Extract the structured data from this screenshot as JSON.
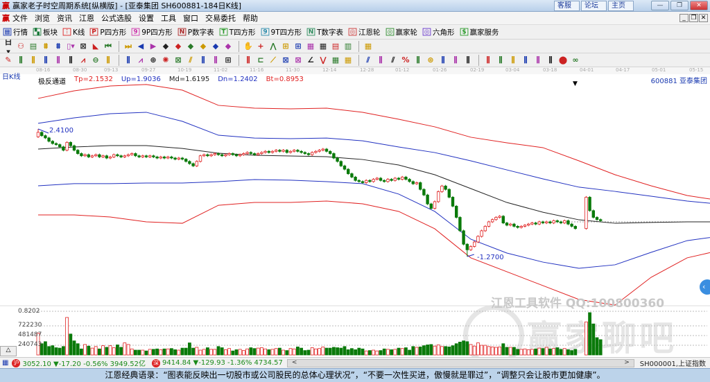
{
  "window": {
    "title": "赢家老子时空周期系统[纵横版] - [亚泰集团  SH600881-184日K线]",
    "logo": "赢",
    "links": [
      "客服",
      "论坛",
      "主页"
    ],
    "controls": [
      "—",
      "❐",
      "✕"
    ]
  },
  "menu": {
    "items": [
      "文件",
      "浏览",
      "资讯",
      "江恩",
      "公式选股",
      "设置",
      "工具",
      "窗口",
      "交易委托",
      "帮助"
    ],
    "mdi": [
      "_",
      "❐",
      "✕"
    ]
  },
  "toolbar1": [
    {
      "label": "行情",
      "icon": "▦",
      "color": "#1a3ab0"
    },
    {
      "label": "板块",
      "icon": "▚",
      "color": "#1a7a3a"
    },
    {
      "label": "K线",
      "icon": "⫶",
      "color": "#d22"
    },
    {
      "label": "P四方形",
      "icon": "P",
      "color": "#c22"
    },
    {
      "label": "9P四方形",
      "icon": "9",
      "color": "#c3a"
    },
    {
      "label": "P数字表",
      "icon": "N",
      "color": "#a22"
    },
    {
      "label": "T四方形",
      "icon": "T",
      "color": "#2a9a2a"
    },
    {
      "label": "9T四方形",
      "icon": "9",
      "color": "#2a8aaa"
    },
    {
      "label": "T数字表",
      "icon": "N",
      "color": "#2a8a5a"
    },
    {
      "label": "江恩轮",
      "icon": "◎",
      "color": "#c33"
    },
    {
      "label": "赢家轮",
      "icon": "◎",
      "color": "#2a8a2a"
    },
    {
      "label": "六角形",
      "icon": "◎",
      "color": "#63c"
    },
    {
      "label": "赢家服务",
      "icon": "$",
      "color": "#2a9a2a"
    }
  ],
  "toolbar2": [
    "日▾",
    "⚇",
    "▤",
    "⩩",
    "⩩",
    "▯▾",
    "⊠",
    "◣",
    "⏮",
    "⏭",
    "◀",
    "▶",
    "◆",
    "◆",
    "◆",
    "◆",
    "◆",
    "◆",
    "✋",
    "+",
    "⋀",
    "⊞",
    "⊞",
    "▦",
    "▦",
    "▤",
    "▥",
    "▦"
  ],
  "toolbar3": [
    "✎",
    "⫼",
    "⫼",
    "⫼",
    "⫼",
    "⫼",
    "⩘",
    "⊖",
    "⫼",
    "⫼",
    "⩘",
    "⊕",
    "✺",
    "⊠",
    "⫽",
    "⫼",
    "⫼",
    "⊞",
    "⫼",
    "⊏",
    "⟋",
    "⊠",
    "⊠",
    "∠",
    "⋁",
    "▦",
    "▦",
    "⫽",
    "⫼",
    "⫽",
    "%",
    "⫼",
    "⊛",
    "⫼",
    "⫼",
    "⫼",
    "⫼",
    "⫼",
    "⫼",
    "⫼",
    "⫼",
    "⫼",
    "⬤",
    "∞"
  ],
  "chart": {
    "period_label": "日K线",
    "stock": "600881  亚泰集团",
    "indicator": {
      "name": "极反通道",
      "tp": "Tp=2.1532",
      "up": "Up=1.9036",
      "md": "Md=1.6195",
      "dn": "Dn=1.2402",
      "bt": "Bt=0.8953"
    },
    "colors": {
      "tp": "#e02020",
      "up": "#2030c0",
      "md": "#222222",
      "dn": "#2030c0",
      "bt": "#e02020",
      "up_candle": "#e02020",
      "down_candle": "#0a7a0a"
    },
    "dates": [
      "08-16",
      "08-30",
      "09-13",
      "09-27",
      "10-19",
      "11-02",
      "11-16",
      "11-30",
      "12-14",
      "12-28",
      "01-12",
      "01-26",
      "02-19",
      "03-04",
      "03-18",
      "04-01",
      "04-17",
      "05-01",
      "05-15"
    ],
    "high_label": "2.4100",
    "low_label": "1.2700",
    "volume_labels": [
      "0.8202",
      "722230",
      "481487",
      "240743"
    ],
    "watermark": "江恩工具软件  QQ:100800360",
    "watermark_big": "赢家聊吧"
  },
  "chart_data": {
    "type": "candlestick",
    "first_open": 2.34,
    "closes": [
      2.38,
      2.35,
      2.33,
      2.3,
      2.28,
      2.27,
      2.25,
      2.22,
      2.29,
      2.26,
      2.22,
      2.19,
      2.17,
      2.18,
      2.16,
      2.17,
      2.18,
      2.16,
      2.17,
      2.15,
      2.16,
      2.18,
      2.17,
      2.16,
      2.17,
      2.18,
      2.19,
      2.17,
      2.16,
      2.17,
      2.16,
      2.17,
      2.16,
      2.15,
      2.16,
      2.15,
      2.16,
      2.15,
      2.14,
      2.15,
      2.14,
      2.12,
      2.1,
      2.08,
      2.12,
      2.17,
      2.18,
      2.17,
      2.18,
      2.19,
      2.18,
      2.17,
      2.18,
      2.19,
      2.18,
      2.17,
      2.18,
      2.19,
      2.2,
      2.19,
      2.18,
      2.19,
      2.2,
      2.21,
      2.2,
      2.21,
      2.22,
      2.21,
      2.22,
      2.2,
      2.21,
      2.22,
      2.21,
      2.2,
      2.19,
      2.18,
      2.2,
      2.21,
      2.22,
      2.23,
      2.21,
      2.19,
      2.15,
      2.12,
      2.08,
      2.05,
      2.01,
      1.98,
      1.95,
      1.94,
      1.93,
      1.95,
      1.94,
      1.96,
      1.97,
      1.95,
      1.94,
      1.96,
      1.95,
      1.97,
      1.96,
      1.98,
      1.96,
      1.94,
      1.92,
      1.93,
      1.87,
      1.82,
      1.74,
      1.7,
      1.76,
      1.85,
      1.9,
      1.87,
      1.8,
      1.72,
      1.62,
      1.5,
      1.38,
      1.33,
      1.36,
      1.4,
      1.45,
      1.5,
      1.54,
      1.58,
      1.6,
      1.62,
      1.63,
      1.57,
      1.55,
      1.56,
      1.54,
      1.53,
      1.54,
      1.55,
      1.56,
      1.57,
      1.56,
      1.58,
      1.57,
      1.58,
      1.57,
      1.59,
      1.58,
      1.57,
      1.59,
      1.56,
      1.54,
      1.52,
      null,
      null,
      1.8,
      1.68,
      1.62,
      1.6,
      1.59
    ],
    "volumes": [
      540000,
      280000,
      330000,
      210000,
      230000,
      180000,
      170000,
      210000,
      930000,
      520000,
      350000,
      280000,
      150000,
      260000,
      220000,
      170000,
      210000,
      150000,
      230000,
      190000,
      230000,
      180000,
      250000,
      190000,
      300000,
      260000,
      150000,
      120000,
      120000,
      120000,
      100000,
      140000,
      140000,
      150000,
      130000,
      150000,
      150000,
      160000,
      130000,
      120000,
      170000,
      170000,
      300000,
      170000,
      190000,
      120000,
      140000,
      180000,
      140000,
      140000,
      210000,
      180000,
      130000,
      160000,
      100000,
      130000,
      140000,
      110000,
      150000,
      180000,
      160000,
      170000,
      180000,
      150000,
      130000,
      140000,
      160000,
      170000,
      120000,
      110000,
      160000,
      150000,
      200000,
      170000,
      110000,
      120000,
      180000,
      150000,
      160000,
      200000,
      170000,
      170000,
      190000,
      180000,
      170000,
      210000,
      130000,
      160000,
      130000,
      170000,
      150000,
      100000,
      110000,
      120000,
      100000,
      110000,
      150000,
      140000,
      130000,
      140000,
      170000,
      160000,
      180000,
      120000,
      210000,
      190000,
      200000,
      230000,
      250000,
      260000,
      220000,
      250000,
      210000,
      210000,
      200000,
      230000,
      280000,
      320000,
      350000,
      330000,
      260000,
      220000,
      300000,
      240000,
      240000,
      210000,
      200000,
      190000,
      200000,
      280000,
      190000,
      190000,
      190000,
      140000,
      140000,
      150000,
      130000,
      140000,
      150000,
      170000,
      160000,
      190000,
      150000,
      160000,
      180000,
      140000,
      160000,
      130000,
      110000,
      140000,
      null,
      null,
      820000,
      1050000,
      770000,
      430000,
      380000
    ],
    "band_sample_step_bars": 10,
    "bands": {
      "tp": [
        2.683,
        2.751,
        2.794,
        2.807,
        2.757,
        2.621,
        2.596,
        2.59,
        2.596,
        2.559,
        2.497,
        2.429,
        2.336,
        2.286,
        2.243,
        2.125,
        2.001,
        1.902,
        1.815,
        1.766
      ],
      "up": [
        2.46,
        2.509,
        2.546,
        2.559,
        2.478,
        2.354,
        2.329,
        2.323,
        2.329,
        2.304,
        2.249,
        2.199,
        2.125,
        2.044,
        1.964,
        1.89,
        1.852,
        1.809,
        1.766,
        1.735
      ],
      "md": [
        2.23,
        2.249,
        2.261,
        2.261,
        2.236,
        2.193,
        2.175,
        2.168,
        2.162,
        2.137,
        2.088,
        2.001,
        1.877,
        1.753,
        1.666,
        1.598,
        1.567,
        1.574,
        1.58,
        1.58
      ],
      "dn": [
        1.902,
        1.921,
        1.921,
        1.927,
        1.927,
        1.939,
        1.958,
        1.952,
        1.939,
        1.921,
        1.828,
        1.673,
        1.425,
        1.301,
        1.22,
        1.165,
        1.196,
        1.307,
        1.412,
        1.456
      ],
      "bt": [
        1.642,
        1.642,
        1.623,
        1.58,
        1.567,
        1.728,
        1.753,
        1.753,
        1.766,
        1.741,
        1.673,
        1.518,
        1.258,
        1.134,
        1.01,
        0.886,
        0.836,
        1.084,
        1.258,
        1.332
      ]
    },
    "high": 2.41,
    "low": 1.27
  },
  "status": {
    "sh": {
      "badge": "沪",
      "text": "3052.10 ▼-17.20 -0.56% 3949.52亿"
    },
    "sz": {
      "badge": "深",
      "text": "9414.84 ▼-129.93 -1.36% 4734.57"
    },
    "scroll_left": "<",
    "scroll_right": ">",
    "index": "SH000001,上证指数"
  },
  "quote": "江恩经典语录：“图表能反映出一切股市或公司股民的总体心理状况”，“不要一次性买进，傲慢就是罪过”，“调整只会让股市更加健康”。"
}
